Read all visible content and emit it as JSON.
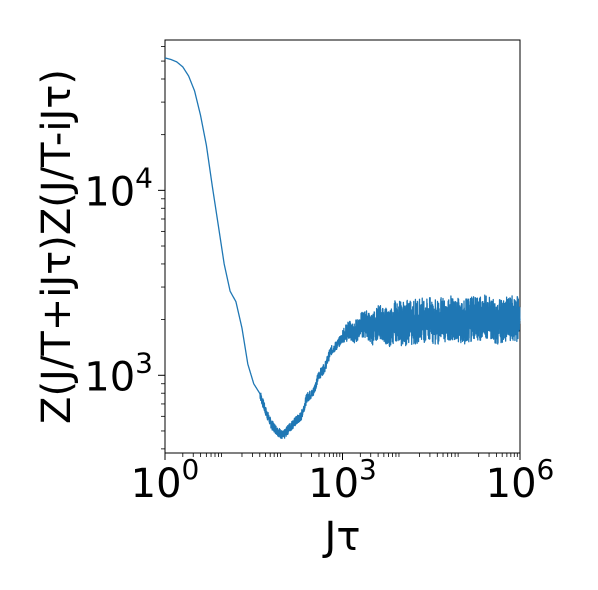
{
  "chart_data": {
    "type": "line",
    "title": "",
    "xlabel": "Jτ",
    "ylabel": "Z(J/T+iJτ)Z(J/T-iJτ)",
    "x_scale": "log",
    "y_scale": "log",
    "xlim": [
      1,
      1000000
    ],
    "ylim": [
      380,
      65000
    ],
    "grid": false,
    "x_ticks": [
      {
        "base": "10",
        "exp": "0",
        "value": 1
      },
      {
        "base": "10",
        "exp": "3",
        "value": 1000
      },
      {
        "base": "10",
        "exp": "6",
        "value": 1000000
      }
    ],
    "y_ticks": [
      {
        "base": "10",
        "exp": "3",
        "value": 1000
      },
      {
        "base": "10",
        "exp": "4",
        "value": 10000
      }
    ],
    "series": [
      {
        "color": "#1f77b4",
        "x": [
          1,
          1.26,
          1.58,
          2,
          2.51,
          3.16,
          3.98,
          5.01,
          6.31,
          7.94,
          10,
          12.6,
          15.8,
          20,
          25.1,
          31.6,
          39.8,
          50.1,
          63.1,
          79.4,
          100,
          126,
          158,
          200,
          251,
          316,
          398,
          501,
          631,
          794,
          1000,
          1260,
          1580,
          2000,
          2510,
          3160,
          3980,
          5010,
          6310,
          7940,
          10000,
          15800,
          25100,
          39800,
          63100,
          100000,
          158000,
          251000,
          398000,
          631000,
          1000000
        ],
        "y": [
          52000,
          51000,
          49500,
          46500,
          41500,
          34500,
          25500,
          17500,
          10500,
          6500,
          4000,
          2850,
          2500,
          1800,
          1150,
          900,
          800,
          640,
          540,
          500,
          470,
          520,
          560,
          600,
          760,
          800,
          1000,
          1100,
          1350,
          1450,
          1600,
          1750,
          1700,
          1850,
          1900,
          1750,
          1950,
          1900,
          1800,
          2000,
          1900,
          1950,
          2000,
          1950,
          2050,
          1950,
          2000,
          2050,
          1950,
          2050,
          2000
        ],
        "noise": {
          "start_x": 1000,
          "low_ratio": 0.72,
          "high_ratio": 1.33
        }
      }
    ]
  }
}
